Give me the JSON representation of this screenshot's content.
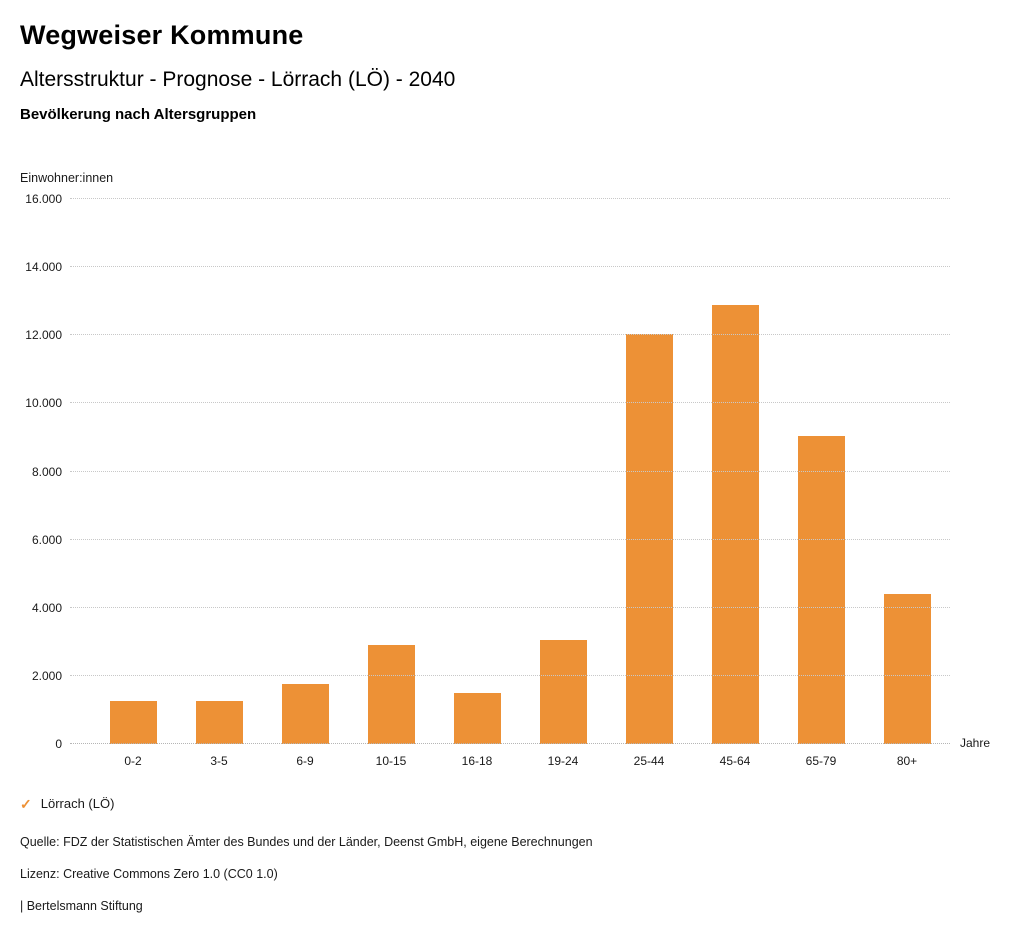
{
  "header": {
    "title": "Wegweiser Kommune",
    "subtitle": "Altersstruktur - Prognose - Lörrach (LÖ) - 2040",
    "chart_subtitle": "Bevölkerung nach Altersgruppen"
  },
  "chart_data": {
    "type": "bar",
    "title": "Bevölkerung nach Altersgruppen",
    "ylabel": "Einwohner:innen",
    "xlabel": "Jahre",
    "categories": [
      "0-2",
      "3-5",
      "6-9",
      "10-15",
      "16-18",
      "19-24",
      "25-44",
      "45-64",
      "65-79",
      "80+"
    ],
    "values": [
      1250,
      1250,
      1750,
      2900,
      1500,
      3050,
      12050,
      12900,
      9050,
      4400
    ],
    "ylim": [
      0,
      16000
    ],
    "ytick_step": 2000,
    "grid": true,
    "legend_position": "bottom-left",
    "bar_color": "#ED9136",
    "series_name": "Lörrach (LÖ)"
  },
  "legend": {
    "checkmark_icon": "✓",
    "label": "Lörrach (LÖ)"
  },
  "footer": {
    "source": "Quelle: FDZ der Statistischen Ämter des Bundes und der Länder, Deenst GmbH, eigene Berechnungen",
    "license": "Lizenz: Creative Commons Zero 1.0 (CC0 1.0)",
    "attribution": "| Bertelsmann Stiftung"
  }
}
